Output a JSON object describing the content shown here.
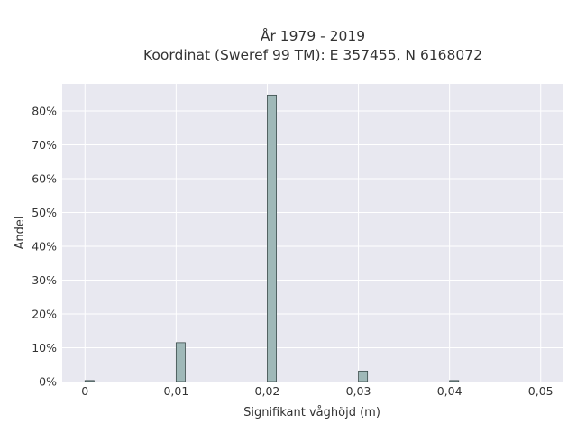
{
  "chart_data": {
    "type": "bar",
    "title_line1": "År 1979 - 2019",
    "title_line2": "Koordinat (Sweref 99 TM): E 357455, N 6168072",
    "xlabel": "Signifikant våghöjd (m)",
    "ylabel": "Andel",
    "x_tick_labels": [
      "0",
      "0,01",
      "0,02",
      "0,03",
      "0,04",
      "0,05"
    ],
    "x_ticks": [
      0,
      0.01,
      0.02,
      0.03,
      0.04,
      0.05
    ],
    "y_tick_labels": [
      "0%",
      "10%",
      "20%",
      "30%",
      "40%",
      "50%",
      "60%",
      "70%",
      "80%"
    ],
    "y_ticks": [
      0,
      10,
      20,
      30,
      40,
      50,
      60,
      70,
      80
    ],
    "xlim": [
      -0.0025,
      0.0525
    ],
    "ylim": [
      0,
      88
    ],
    "bin_width": 0.001,
    "bins": [
      {
        "x": 0.0,
        "value": 0.3
      },
      {
        "x": 0.01,
        "value": 11.5
      },
      {
        "x": 0.02,
        "value": 84.7
      },
      {
        "x": 0.03,
        "value": 3.1
      },
      {
        "x": 0.04,
        "value": 0.3
      }
    ],
    "colors": {
      "plot_background": "#e8e8f0",
      "grid": "#ffffff",
      "bar_fill": "#9fb8b8",
      "bar_stroke": "#3a4a4a"
    },
    "grid": true
  }
}
